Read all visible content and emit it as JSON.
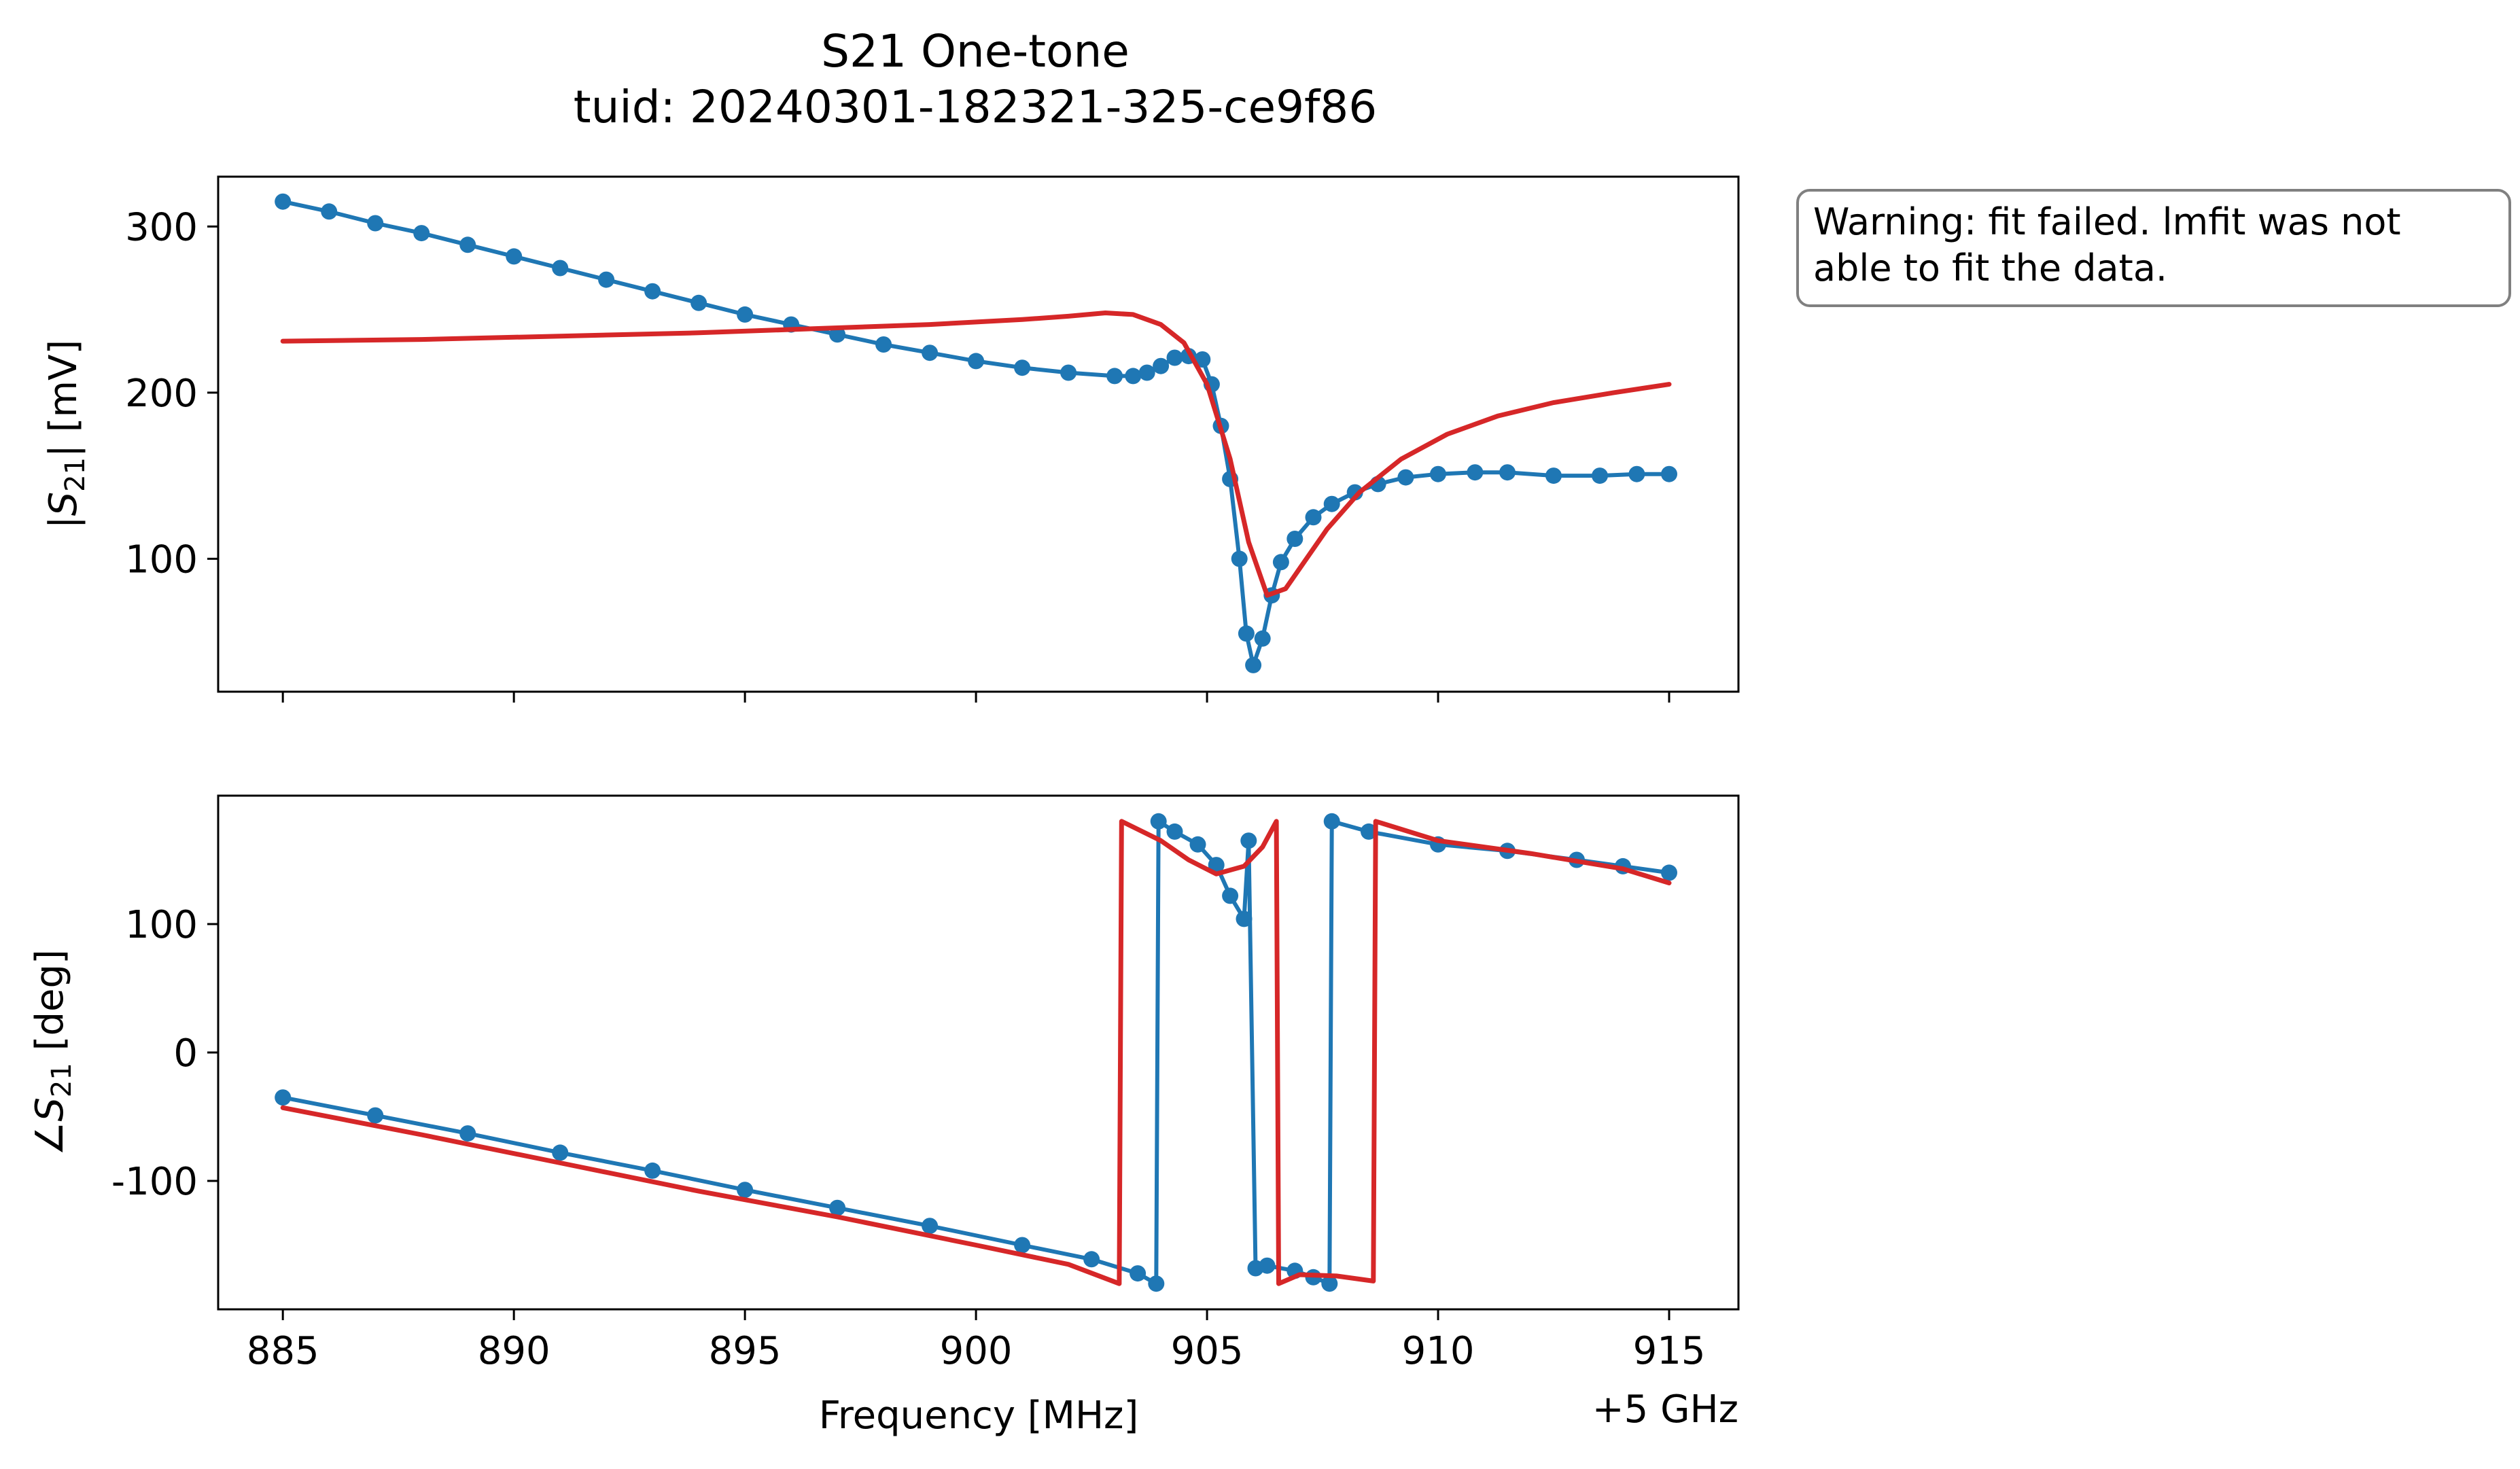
{
  "chart_data": [
    {
      "panel": "top",
      "type": "line",
      "title_lines": [
        "S21 One-tone",
        "tuid: 20240301-182321-325-ce9f86"
      ],
      "ylabel_parts": {
        "prefix": "|",
        "symbol": "S",
        "subscript": "21",
        "suffix": "| [mV]"
      },
      "xlim": [
        883.6,
        916.5
      ],
      "ylim": [
        20,
        330
      ],
      "x_ticks": [
        885,
        890,
        895,
        900,
        905,
        910,
        915
      ],
      "y_ticks": [
        100,
        200,
        300
      ],
      "y_tick_labels": [
        "100",
        "200",
        "300"
      ],
      "grid": false,
      "series": [
        {
          "role": "data",
          "color": "#1f77b4",
          "style": "line+markers",
          "points": [
            [
              885,
              315
            ],
            [
              886,
              309
            ],
            [
              887,
              302
            ],
            [
              888,
              296
            ],
            [
              889,
              289
            ],
            [
              890,
              282
            ],
            [
              891,
              275
            ],
            [
              892,
              268
            ],
            [
              893,
              261
            ],
            [
              894,
              254
            ],
            [
              895,
              247
            ],
            [
              896,
              241
            ],
            [
              897,
              235
            ],
            [
              898,
              229
            ],
            [
              899,
              224
            ],
            [
              900,
              219
            ],
            [
              901,
              215
            ],
            [
              902,
              212
            ],
            [
              903,
              210
            ],
            [
              903.4,
              210
            ],
            [
              903.7,
              212
            ],
            [
              904,
              216
            ],
            [
              904.3,
              221
            ],
            [
              904.6,
              222
            ],
            [
              904.9,
              220
            ],
            [
              905.1,
              205
            ],
            [
              905.3,
              180
            ],
            [
              905.5,
              148
            ],
            [
              905.7,
              100
            ],
            [
              905.85,
              55
            ],
            [
              906.0,
              36
            ],
            [
              906.2,
              52
            ],
            [
              906.4,
              78
            ],
            [
              906.6,
              98
            ],
            [
              906.9,
              112
            ],
            [
              907.3,
              125
            ],
            [
              907.7,
              133
            ],
            [
              908.2,
              140
            ],
            [
              908.7,
              145
            ],
            [
              909.3,
              149
            ],
            [
              910,
              151
            ],
            [
              910.8,
              152
            ],
            [
              911.5,
              152
            ],
            [
              912.5,
              150
            ],
            [
              913.5,
              150
            ],
            [
              914.3,
              151
            ],
            [
              915,
              151
            ]
          ]
        },
        {
          "role": "fit",
          "color": "#d62728",
          "style": "line",
          "points": [
            [
              885,
              231
            ],
            [
              888,
              232
            ],
            [
              891,
              234
            ],
            [
              894,
              236
            ],
            [
              897,
              239
            ],
            [
              899,
              241
            ],
            [
              901,
              244
            ],
            [
              902,
              246
            ],
            [
              902.8,
              248
            ],
            [
              903.4,
              247
            ],
            [
              904,
              241
            ],
            [
              904.5,
              230
            ],
            [
              905,
              205
            ],
            [
              905.5,
              160
            ],
            [
              905.9,
              110
            ],
            [
              906.3,
              78
            ],
            [
              906.7,
              82
            ],
            [
              907.1,
              98
            ],
            [
              907.6,
              118
            ],
            [
              908.3,
              140
            ],
            [
              909.2,
              160
            ],
            [
              910.2,
              175
            ],
            [
              911.3,
              186
            ],
            [
              912.5,
              194
            ],
            [
              913.8,
              200
            ],
            [
              915,
              205
            ]
          ]
        }
      ]
    },
    {
      "panel": "bottom",
      "type": "line",
      "xlabel": "Frequency [MHz]",
      "x_offset_label": "+5 GHz",
      "ylabel_parts": {
        "prefix": "∠",
        "symbol": "S",
        "subscript": "21",
        "suffix": " [deg]"
      },
      "xlim": [
        883.6,
        916.5
      ],
      "ylim": [
        -200,
        200
      ],
      "x_ticks": [
        885,
        890,
        895,
        900,
        905,
        910,
        915
      ],
      "x_tick_labels": [
        "885",
        "890",
        "895",
        "900",
        "905",
        "910",
        "915"
      ],
      "y_ticks": [
        -100,
        0,
        100
      ],
      "y_tick_labels": [
        "-100",
        "0",
        "100"
      ],
      "grid": false,
      "series": [
        {
          "role": "data",
          "color": "#1f77b4",
          "style": "line+markers",
          "points": [
            [
              885,
              -35
            ],
            [
              887,
              -49
            ],
            [
              889,
              -63
            ],
            [
              891,
              -78
            ],
            [
              893,
              -92
            ],
            [
              895,
              -107
            ],
            [
              897,
              -121
            ],
            [
              899,
              -135
            ],
            [
              901,
              -150
            ],
            [
              902.5,
              -161
            ],
            [
              903.5,
              -172
            ],
            [
              903.9,
              -180
            ],
            [
              903.95,
              180
            ],
            [
              904.3,
              172
            ],
            [
              904.8,
              162
            ],
            [
              905.2,
              146
            ],
            [
              905.5,
              122
            ],
            [
              905.8,
              104
            ],
            [
              905.9,
              165
            ],
            [
              906.05,
              -168
            ],
            [
              906.3,
              -166
            ],
            [
              906.9,
              -170
            ],
            [
              907.3,
              -175
            ],
            [
              907.65,
              -180
            ],
            [
              907.7,
              180
            ],
            [
              908.5,
              172
            ],
            [
              910,
              162
            ],
            [
              911.5,
              157
            ],
            [
              913,
              150
            ],
            [
              914,
              145
            ],
            [
              915,
              140
            ]
          ]
        },
        {
          "role": "fit",
          "color": "#d62728",
          "style": "line",
          "points": [
            [
              885,
              -43
            ],
            [
              888,
              -64
            ],
            [
              891,
              -86
            ],
            [
              894,
              -108
            ],
            [
              897,
              -128
            ],
            [
              900,
              -150
            ],
            [
              902,
              -165
            ],
            [
              903.1,
              -180
            ],
            [
              903.15,
              180
            ],
            [
              904,
              165
            ],
            [
              904.6,
              150
            ],
            [
              905.2,
              139
            ],
            [
              905.8,
              145
            ],
            [
              906.2,
              160
            ],
            [
              906.5,
              180
            ],
            [
              906.55,
              -180
            ],
            [
              907,
              -173
            ],
            [
              907.8,
              -174
            ],
            [
              908.6,
              -178
            ],
            [
              908.65,
              180
            ],
            [
              910,
              165
            ],
            [
              912,
              155
            ],
            [
              914,
              143
            ],
            [
              915,
              132
            ]
          ]
        }
      ]
    }
  ],
  "annotation": {
    "lines": [
      "Warning: fit failed. lmfit was not",
      "able to fit the data."
    ]
  }
}
